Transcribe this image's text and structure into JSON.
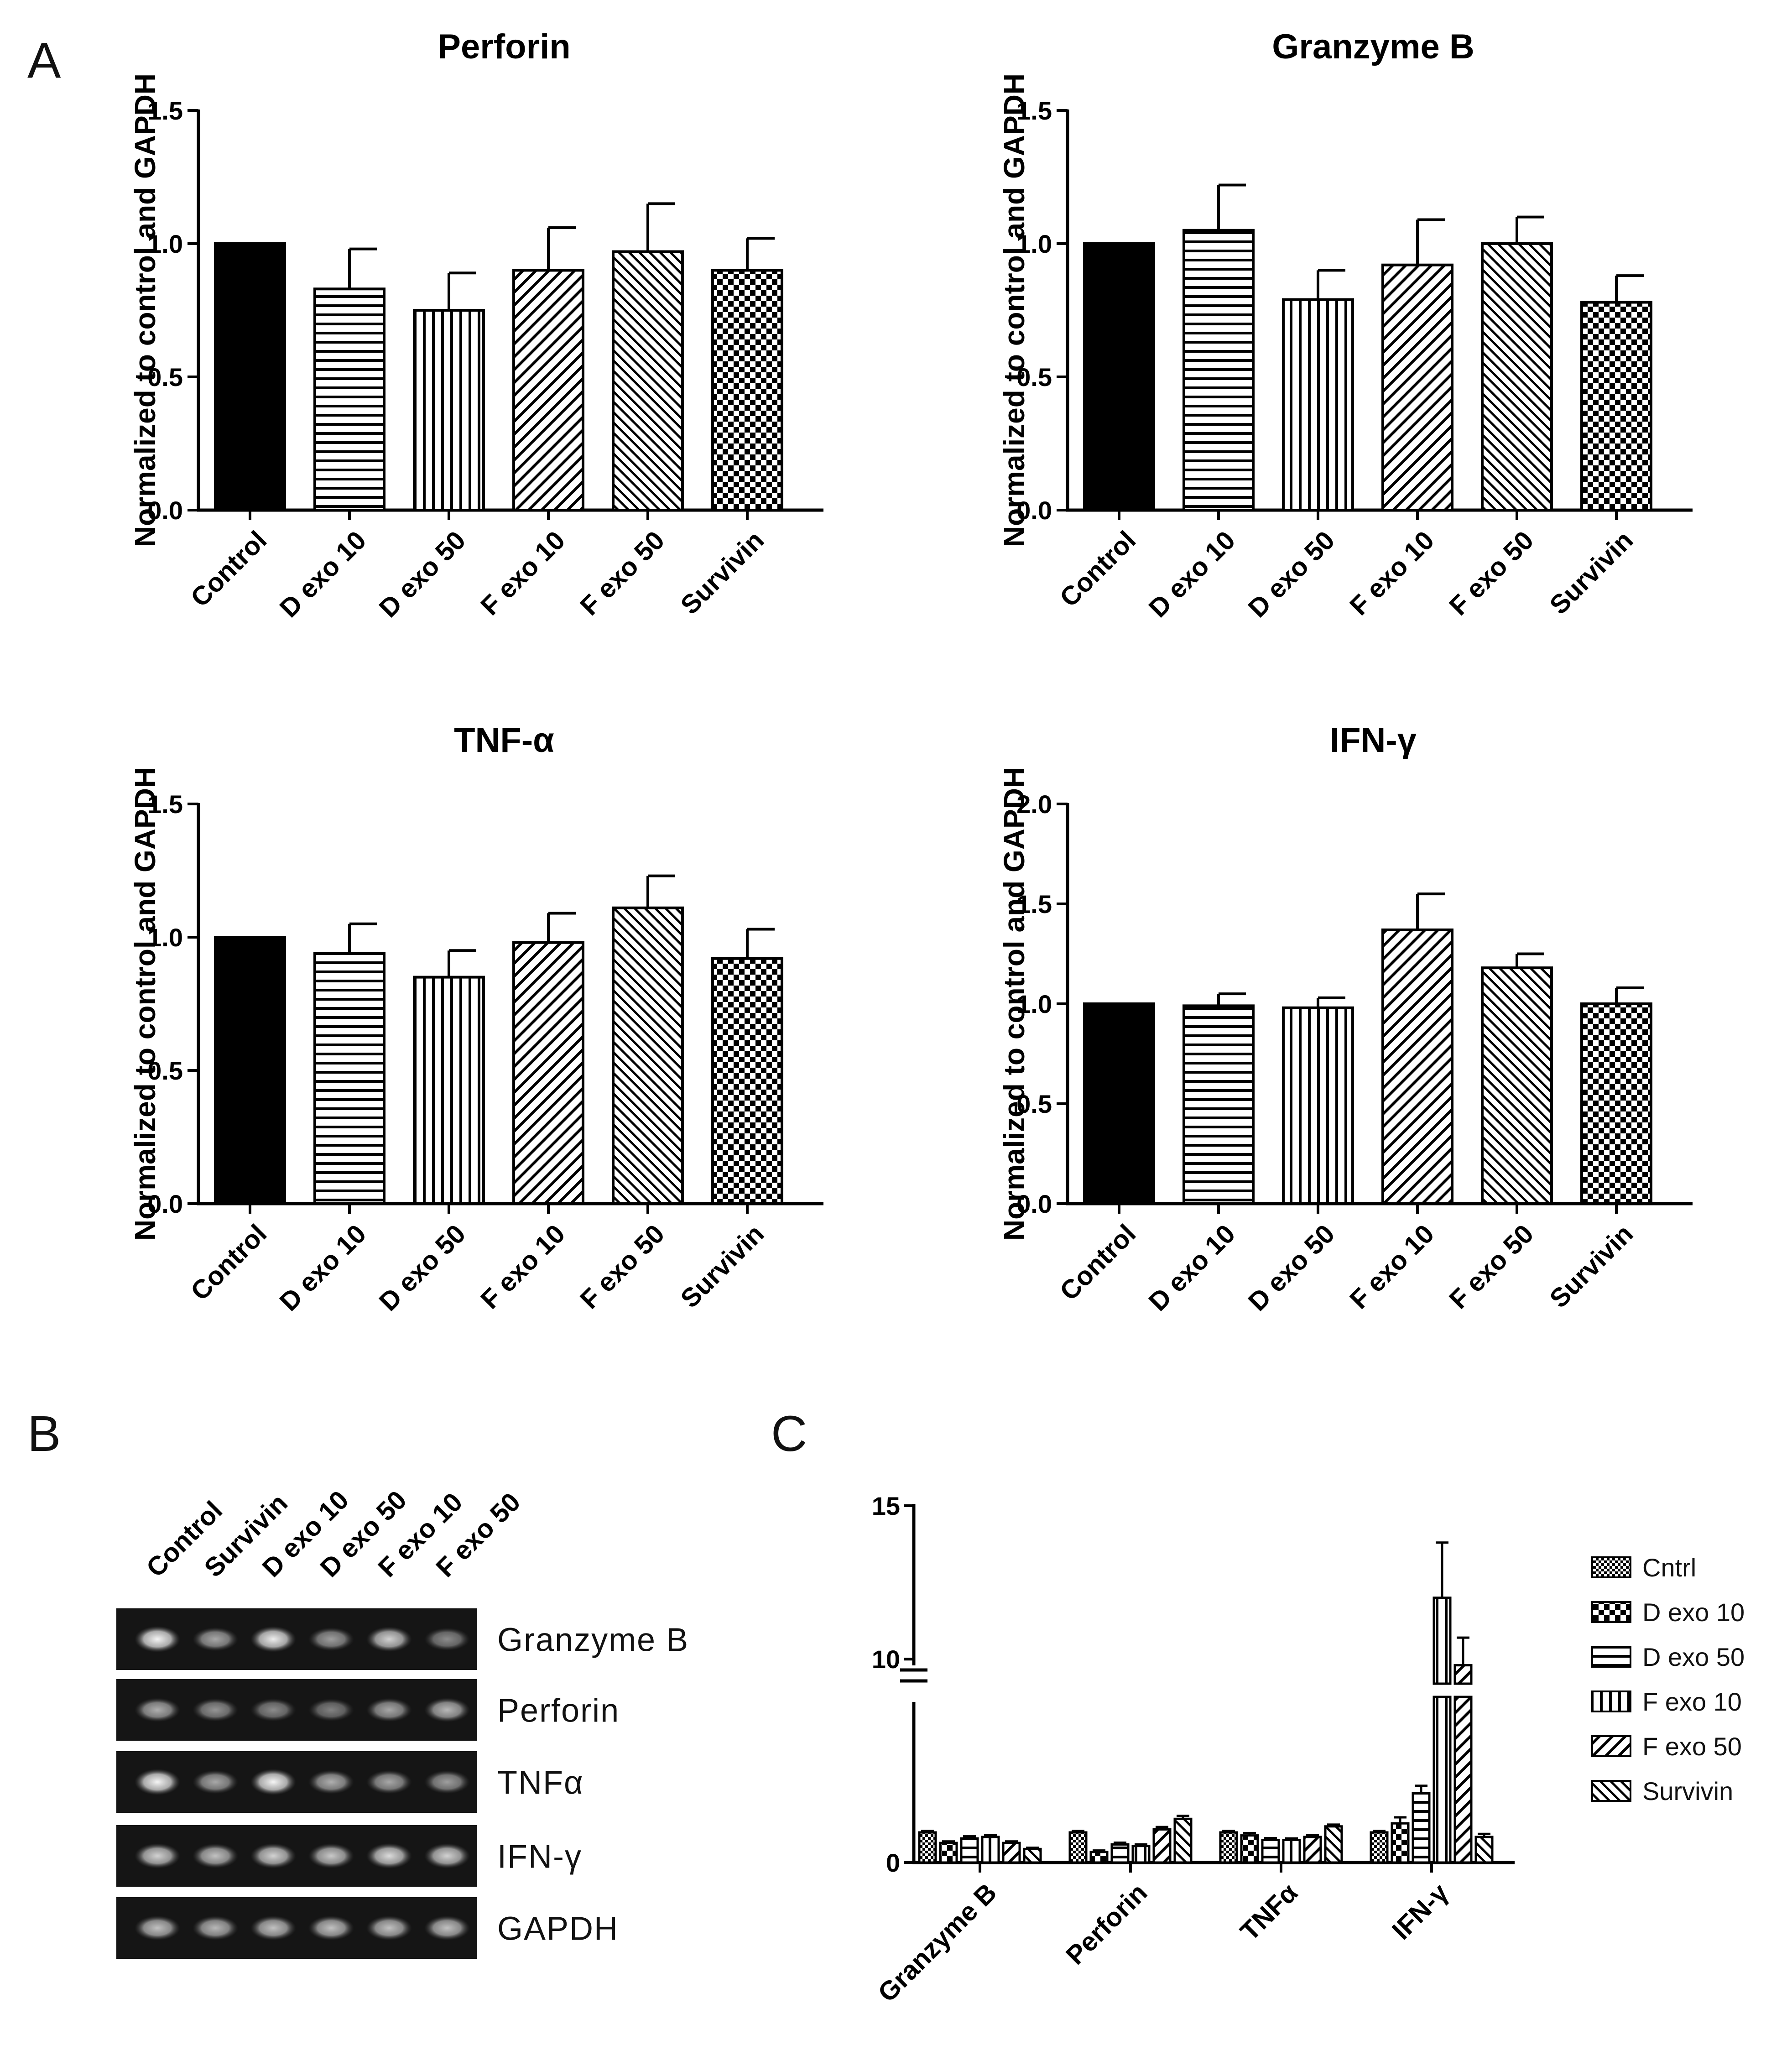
{
  "panels": {
    "a": "A",
    "b": "B",
    "c": "C"
  },
  "chart_data": [
    {
      "type": "bar",
      "panel": "A",
      "title": "Perforin",
      "ylabel": "Normalized to control and GAPDH",
      "categories": [
        "Control",
        "D exo 10",
        "D exo 50",
        "F exo 10",
        "F exo 50",
        "Survivin"
      ],
      "values": [
        1.0,
        0.83,
        0.75,
        0.9,
        0.97,
        0.9
      ],
      "errors": [
        0.0,
        0.15,
        0.14,
        0.16,
        0.18,
        0.12
      ],
      "ylim": [
        0,
        1.5
      ],
      "yticks": [
        "0.0",
        "0.5",
        "1.0",
        "1.5"
      ],
      "patterns": [
        "solid",
        "hlines",
        "vlines",
        "diag-up",
        "diag-down",
        "checker"
      ]
    },
    {
      "type": "bar",
      "panel": "A",
      "title": "Granzyme B",
      "ylabel": "Normalized to control and GAPDH",
      "categories": [
        "Control",
        "D exo 10",
        "D exo 50",
        "F exo 10",
        "F exo 50",
        "Survivin"
      ],
      "values": [
        1.0,
        1.05,
        0.79,
        0.92,
        1.0,
        0.78
      ],
      "errors": [
        0.0,
        0.17,
        0.11,
        0.17,
        0.1,
        0.1
      ],
      "ylim": [
        0,
        1.5
      ],
      "yticks": [
        "0.0",
        "0.5",
        "1.0",
        "1.5"
      ],
      "patterns": [
        "solid",
        "hlines",
        "vlines",
        "diag-up",
        "diag-down",
        "checker"
      ]
    },
    {
      "type": "bar",
      "panel": "A",
      "title": "TNF-α",
      "ylabel": "Normalized to control and GAPDH",
      "categories": [
        "Control",
        "D exo 10",
        "D exo 50",
        "F exo 10",
        "F exo 50",
        "Survivin"
      ],
      "values": [
        1.0,
        0.94,
        0.85,
        0.98,
        1.11,
        0.92
      ],
      "errors": [
        0.0,
        0.11,
        0.1,
        0.11,
        0.12,
        0.11
      ],
      "ylim": [
        0,
        1.5
      ],
      "yticks": [
        "0.0",
        "0.5",
        "1.0",
        "1.5"
      ],
      "patterns": [
        "solid",
        "hlines",
        "vlines",
        "diag-up",
        "diag-down",
        "checker"
      ]
    },
    {
      "type": "bar",
      "panel": "A",
      "title": "IFN-γ",
      "ylabel": "Normalized to control and GAPDH",
      "categories": [
        "Control",
        "D exo 10",
        "D exo 50",
        "F exo 10",
        "F exo 50",
        "Survivin"
      ],
      "values": [
        1.0,
        0.99,
        0.98,
        1.37,
        1.18,
        1.0
      ],
      "errors": [
        0.0,
        0.06,
        0.05,
        0.18,
        0.07,
        0.08
      ],
      "ylim": [
        0,
        2.0
      ],
      "yticks": [
        "0.0",
        "0.5",
        "1.0",
        "1.5",
        "2.0"
      ],
      "patterns": [
        "solid",
        "hlines",
        "vlines",
        "diag-up",
        "diag-down",
        "checker"
      ]
    },
    {
      "type": "bar",
      "panel": "C",
      "categories": [
        "Granzyme B",
        "Perforin",
        "TNFα",
        "IFN-γ"
      ],
      "yticks": [
        "0",
        "10",
        "15"
      ],
      "axis_break": true,
      "series": [
        {
          "name": "Cntrl",
          "pattern": "dots",
          "values": [
            1.0,
            1.0,
            1.0,
            1.0
          ],
          "errors": [
            0.05,
            0.05,
            0.05,
            0.05
          ]
        },
        {
          "name": "D exo 10",
          "pattern": "checker",
          "values": [
            0.65,
            0.35,
            0.9,
            1.3
          ],
          "errors": [
            0.05,
            0.05,
            0.08,
            0.2
          ]
        },
        {
          "name": "D exo 50",
          "pattern": "hlines",
          "values": [
            0.8,
            0.6,
            0.75,
            2.3
          ],
          "errors": [
            0.07,
            0.06,
            0.06,
            0.25
          ]
        },
        {
          "name": "F exo 10",
          "pattern": "vlines",
          "values": [
            0.85,
            0.55,
            0.75,
            12.0
          ],
          "errors": [
            0.06,
            0.05,
            0.05,
            1.8
          ]
        },
        {
          "name": "F exo 50",
          "pattern": "diag-up",
          "values": [
            0.65,
            1.1,
            0.85,
            9.8
          ],
          "errors": [
            0.05,
            0.08,
            0.06,
            0.9
          ]
        },
        {
          "name": "Survivin",
          "pattern": "diag-down",
          "values": [
            0.45,
            1.45,
            1.2,
            0.85
          ],
          "errors": [
            0.04,
            0.1,
            0.06,
            0.1
          ]
        }
      ]
    }
  ],
  "gel": {
    "lanes": [
      "Control",
      "Survivin",
      "D exo 10",
      "D exo 50",
      "F exo 10",
      "F exo 50"
    ],
    "genes": [
      {
        "name": "Granzyme B",
        "intensity": [
          0.95,
          0.5,
          0.9,
          0.45,
          0.75,
          0.35
        ]
      },
      {
        "name": "Perforin",
        "intensity": [
          0.55,
          0.4,
          0.35,
          0.3,
          0.5,
          0.6
        ]
      },
      {
        "name": "TNFα",
        "intensity": [
          0.95,
          0.5,
          0.95,
          0.55,
          0.5,
          0.45
        ]
      },
      {
        "name": "IFN-γ",
        "intensity": [
          0.75,
          0.65,
          0.75,
          0.7,
          0.8,
          0.75
        ]
      },
      {
        "name": "GAPDH",
        "intensity": [
          0.65,
          0.6,
          0.65,
          0.65,
          0.65,
          0.65
        ]
      }
    ]
  }
}
